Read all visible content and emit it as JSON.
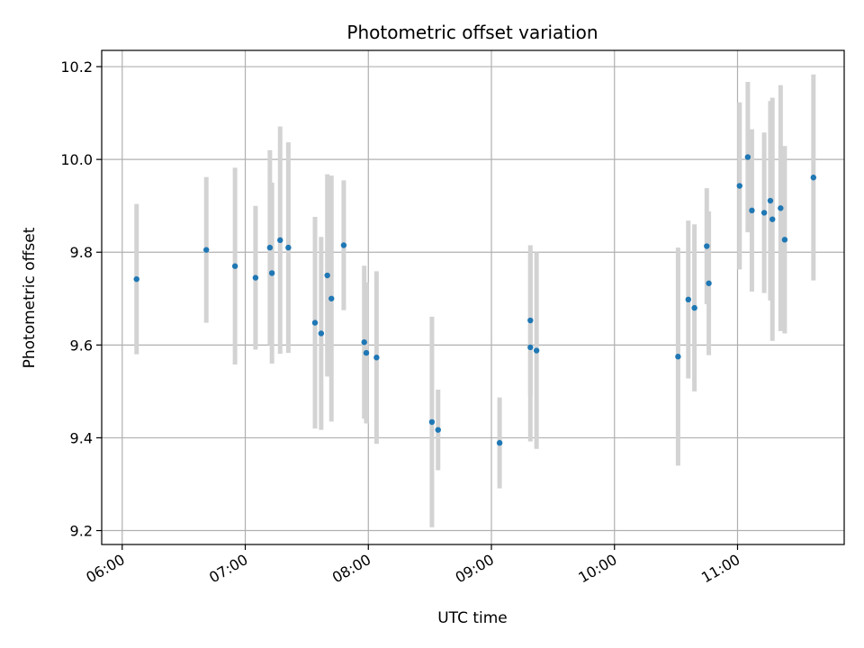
{
  "chart_data": {
    "type": "scatter",
    "title": "Photometric offset variation",
    "xlabel": "UTC time",
    "ylabel": "Photometric offset",
    "x_tick_labels": [
      "06:00",
      "07:00",
      "08:00",
      "09:00",
      "10:00",
      "11:00"
    ],
    "x_tick_values": [
      "06:00",
      "07:00",
      "08:00",
      "09:00",
      "10:00",
      "11:00"
    ],
    "y_tick_labels": [
      "9.2",
      "9.4",
      "9.6",
      "9.8",
      "10.0",
      "10.2"
    ],
    "y_tick_values": [
      9.2,
      9.4,
      9.6,
      9.8,
      10.0,
      10.2
    ],
    "xlim": [
      "05:50",
      "11:52"
    ],
    "ylim": [
      9.17,
      10.235
    ],
    "grid": true,
    "marker_color": "#1f77b4",
    "errorbar_color": "#d3d3d3",
    "series": [
      {
        "points": [
          {
            "x": "06:07",
            "y": 9.742,
            "err": 0.162
          },
          {
            "x": "06:41",
            "y": 9.805,
            "err": 0.157
          },
          {
            "x": "06:55",
            "y": 9.77,
            "err": 0.212
          },
          {
            "x": "07:05",
            "y": 9.745,
            "err": 0.155
          },
          {
            "x": "07:12",
            "y": 9.81,
            "err": 0.21
          },
          {
            "x": "07:13",
            "y": 9.755,
            "err": 0.195
          },
          {
            "x": "07:17",
            "y": 9.826,
            "err": 0.245
          },
          {
            "x": "07:21",
            "y": 9.81,
            "err": 0.227
          },
          {
            "x": "07:34",
            "y": 9.648,
            "err": 0.228
          },
          {
            "x": "07:37",
            "y": 9.625,
            "err": 0.208
          },
          {
            "x": "07:40",
            "y": 9.75,
            "err": 0.218
          },
          {
            "x": "07:42",
            "y": 9.7,
            "err": 0.265
          },
          {
            "x": "07:48",
            "y": 9.815,
            "err": 0.14
          },
          {
            "x": "07:58",
            "y": 9.606,
            "err": 0.165
          },
          {
            "x": "07:59",
            "y": 9.583,
            "err": 0.152
          },
          {
            "x": "08:04",
            "y": 9.573,
            "err": 0.186
          },
          {
            "x": "08:31",
            "y": 9.434,
            "err": 0.227
          },
          {
            "x": "08:34",
            "y": 9.417,
            "err": 0.087
          },
          {
            "x": "09:04",
            "y": 9.389,
            "err": 0.098
          },
          {
            "x": "09:19",
            "y": 9.653,
            "err": 0.162
          },
          {
            "x": "09:19",
            "y": 9.595,
            "err": 0.203
          },
          {
            "x": "09:22",
            "y": 9.588,
            "err": 0.212
          },
          {
            "x": "10:31",
            "y": 9.575,
            "err": 0.235
          },
          {
            "x": "10:36",
            "y": 9.698,
            "err": 0.17
          },
          {
            "x": "10:39",
            "y": 9.68,
            "err": 0.18
          },
          {
            "x": "10:45",
            "y": 9.813,
            "err": 0.125
          },
          {
            "x": "10:46",
            "y": 9.733,
            "err": 0.155
          },
          {
            "x": "11:01",
            "y": 9.943,
            "err": 0.18
          },
          {
            "x": "11:05",
            "y": 10.005,
            "err": 0.162
          },
          {
            "x": "11:07",
            "y": 9.89,
            "err": 0.175
          },
          {
            "x": "11:13",
            "y": 9.885,
            "err": 0.173
          },
          {
            "x": "11:16",
            "y": 9.911,
            "err": 0.215
          },
          {
            "x": "11:17",
            "y": 9.871,
            "err": 0.262
          },
          {
            "x": "11:21",
            "y": 9.895,
            "err": 0.265
          },
          {
            "x": "11:23",
            "y": 9.827,
            "err": 0.202
          },
          {
            "x": "11:37",
            "y": 9.961,
            "err": 0.222
          }
        ]
      }
    ]
  }
}
